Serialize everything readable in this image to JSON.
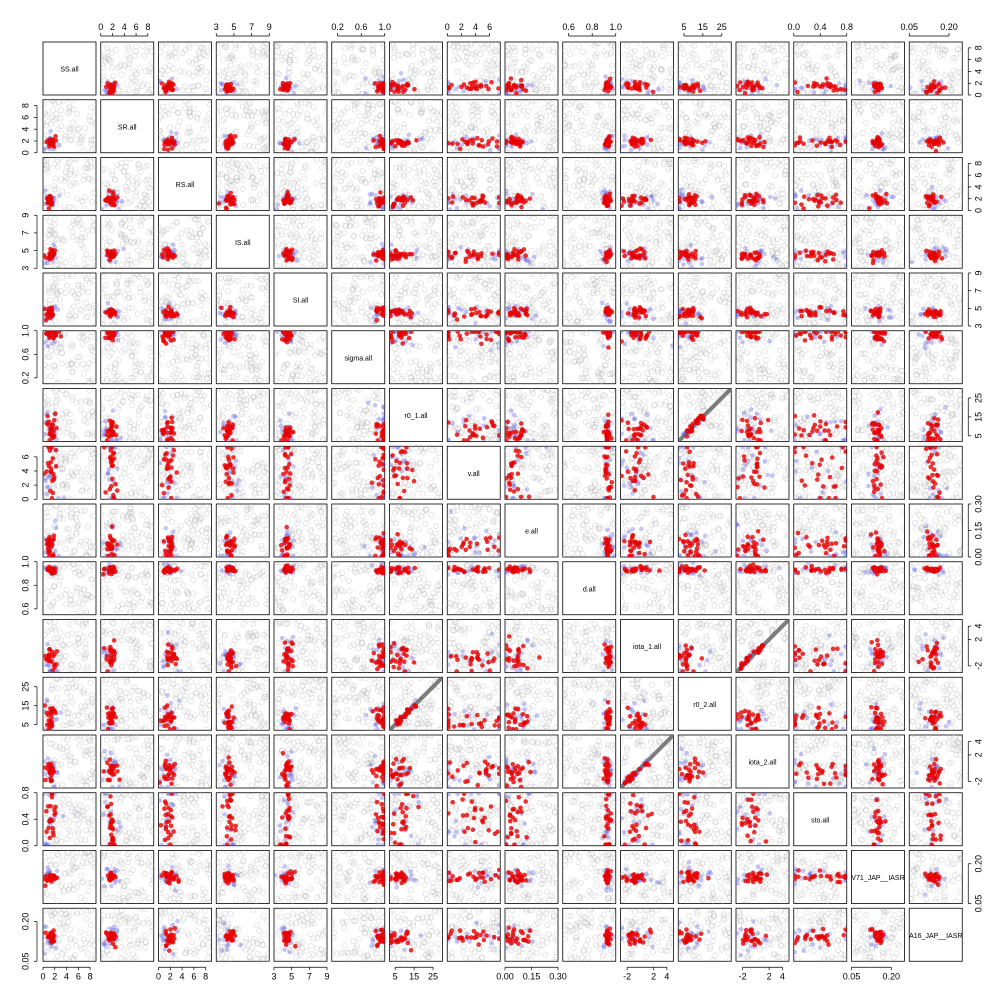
{
  "chart_data": {
    "type": "scatter",
    "layout": "pairs-matrix",
    "variables": [
      "SS.all",
      "SR.all",
      "RS.all",
      "IS.all",
      "SI.all",
      "sigma.all",
      "r0_1.all",
      "v.all",
      "e.all",
      "d.all",
      "iota_1.all",
      "r0_2.all",
      "iota_2.all",
      "sto.all",
      "V71_JAP__IASR",
      "A16_JAP__IASR"
    ],
    "ranges": [
      [
        0,
        9
      ],
      [
        0,
        9
      ],
      [
        0,
        9
      ],
      [
        3,
        9
      ],
      [
        3,
        9
      ],
      [
        0.1,
        1
      ],
      [
        2,
        30
      ],
      [
        0,
        7.5
      ],
      [
        0,
        0.3
      ],
      [
        0.55,
        1
      ],
      [
        -3,
        5
      ],
      [
        2,
        30
      ],
      [
        -3,
        5
      ],
      [
        0,
        0.8
      ],
      [
        0.05,
        0.25
      ],
      [
        0.05,
        0.25
      ]
    ],
    "ticks": [
      [
        0,
        2,
        4,
        6,
        8
      ],
      [
        0,
        2,
        4,
        6,
        8
      ],
      [
        0,
        2,
        4,
        6,
        8
      ],
      [
        3,
        5,
        7,
        9
      ],
      [
        3,
        5,
        7,
        9
      ],
      [
        0.2,
        0.6,
        1.0
      ],
      [
        5,
        15,
        25
      ],
      [
        0,
        2,
        4,
        6
      ],
      [
        0.0,
        0.15,
        0.3
      ],
      [
        0.6,
        0.8,
        1.0
      ],
      [
        -2,
        2,
        4
      ],
      [
        5,
        15,
        25
      ],
      [
        -2,
        2,
        4
      ],
      [
        0.0,
        0.4,
        0.8
      ],
      [
        0.05,
        0.2
      ],
      [
        0.05,
        0.2
      ]
    ],
    "tick_labels": [
      [
        "0",
        "2",
        "4",
        "6",
        "8"
      ],
      [
        "0",
        "2",
        "4",
        "6",
        "8"
      ],
      [
        "0",
        "2",
        "4",
        "6",
        "8"
      ],
      [
        "3",
        "5",
        "7",
        "9"
      ],
      [
        "3",
        "5",
        "7",
        "9"
      ],
      [
        "0.2",
        "0.6",
        "1.0"
      ],
      [
        "5",
        "15",
        "25"
      ],
      [
        "0",
        "2",
        "4",
        "6"
      ],
      [
        "0.00",
        "0.15",
        "0.30"
      ],
      [
        "0.6",
        "0.8",
        "1.0"
      ],
      [
        "-2",
        "2",
        "4"
      ],
      [
        "5",
        "15",
        "25"
      ],
      [
        "-2",
        "2",
        "4"
      ],
      [
        "0.0",
        "0.4",
        "0.8"
      ],
      [
        "0.05",
        "0.20"
      ],
      [
        "0.05",
        "0.20"
      ]
    ],
    "series": [
      {
        "role": "prior draws",
        "color": "#b4b4b4"
      },
      {
        "role": "posterior sample A",
        "color": "#5a5ae6"
      },
      {
        "role": "posterior sample B",
        "color": "#e60000"
      }
    ],
    "identity_line_pairs": [
      [
        6,
        11
      ],
      [
        10,
        12
      ]
    ],
    "grid": false,
    "legend": "none"
  }
}
